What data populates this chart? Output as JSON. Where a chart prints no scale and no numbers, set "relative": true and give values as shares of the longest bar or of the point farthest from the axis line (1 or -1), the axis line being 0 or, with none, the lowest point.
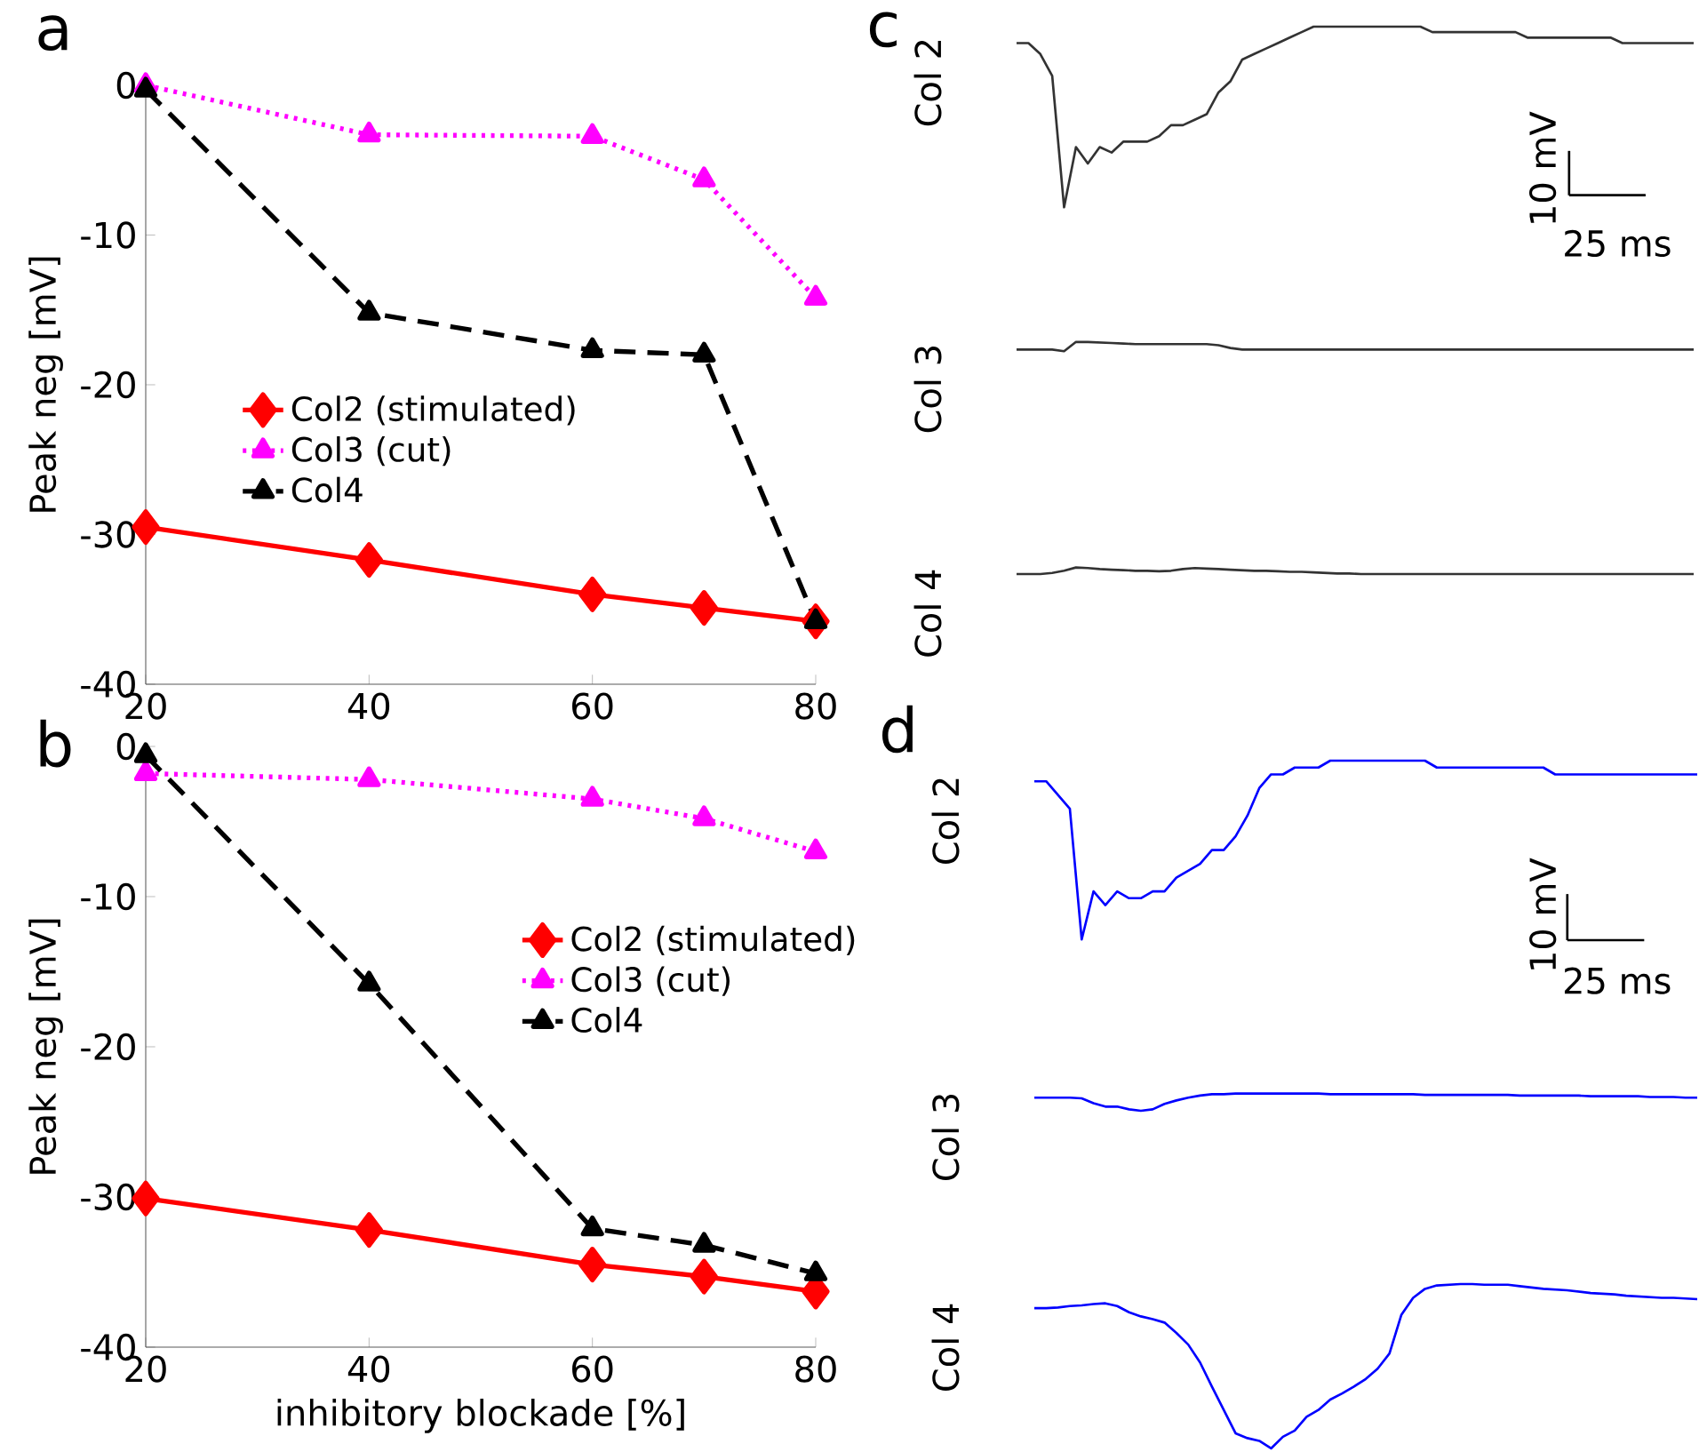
{
  "chart_data": [
    {
      "type": "line",
      "title": "a",
      "ylabel": "Peak neg [mV]",
      "x": [
        20,
        40,
        60,
        70,
        80
      ],
      "xlim": [
        20,
        80
      ],
      "ylim": [
        -40,
        0
      ],
      "xticks": [
        20,
        40,
        60,
        80
      ],
      "yticks": [
        0,
        -10,
        -20,
        -30,
        -40
      ],
      "legend": "left",
      "series": [
        {
          "name": "Col2 (stimulated)",
          "color": "#ff0000",
          "marker": "diamond",
          "line_style": "solid",
          "values": [
            -29.5,
            -31.7,
            -34.0,
            -34.9,
            -35.8
          ]
        },
        {
          "name": "Col3 (cut)",
          "color": "#ff00ff",
          "marker": "triangle",
          "line_style": "dotted",
          "values": [
            0,
            -3.3,
            -3.4,
            -6.3,
            -14.2
          ]
        },
        {
          "name": "Col4",
          "color": "#000000",
          "marker": "triangle",
          "line_style": "dashed",
          "values": [
            -0.3,
            -15.2,
            -17.7,
            -18.0,
            -35.8
          ]
        }
      ]
    },
    {
      "type": "line",
      "title": "b",
      "xlabel": "inhibitory blockade [%]",
      "ylabel": "Peak neg [mV]",
      "x": [
        20,
        40,
        60,
        70,
        80
      ],
      "xlim": [
        20,
        80
      ],
      "ylim": [
        -40,
        0
      ],
      "xticks": [
        20,
        40,
        60,
        80
      ],
      "yticks": [
        0,
        -10,
        -20,
        -30,
        -40
      ],
      "legend": "right",
      "series": [
        {
          "name": "Col2 (stimulated)",
          "color": "#ff0000",
          "marker": "diamond",
          "line_style": "solid",
          "values": [
            -30.1,
            -32.2,
            -34.5,
            -35.3,
            -36.3
          ]
        },
        {
          "name": "Col3 (cut)",
          "color": "#ff00ff",
          "marker": "triangle",
          "line_style": "dotted",
          "values": [
            -1.8,
            -2.2,
            -3.5,
            -4.8,
            -7.0
          ]
        },
        {
          "name": "Col4",
          "color": "#000000",
          "marker": "triangle",
          "line_style": "dashed",
          "values": [
            -0.6,
            -15.8,
            -32.1,
            -33.2,
            -35.1
          ]
        }
      ]
    },
    {
      "type": "line",
      "title": "c",
      "relative": true,
      "annotations": [
        "10 mV",
        "25 ms"
      ],
      "categories": [
        null,
        null,
        null,
        null,
        null,
        null,
        null,
        null,
        null,
        null,
        null,
        null,
        null,
        null,
        null,
        null,
        null,
        null,
        null,
        null,
        null,
        null,
        null,
        null,
        null,
        null,
        null,
        null,
        null,
        null,
        null,
        null,
        null,
        null,
        null,
        null,
        null,
        null,
        null,
        null,
        null,
        null,
        null,
        null,
        null,
        null,
        null,
        null,
        null,
        null,
        null,
        null,
        null,
        null,
        null,
        null,
        null,
        null
      ],
      "series": [
        {
          "name": "Col 2",
          "color": "#333333",
          "values": [
            0.97,
            0.97,
            0.95,
            0.91,
            0.67,
            0.78,
            0.75,
            0.78,
            0.77,
            0.79,
            0.79,
            0.79,
            0.8,
            0.82,
            0.82,
            0.83,
            0.84,
            0.88,
            0.9,
            0.94,
            0.95,
            0.96,
            0.97,
            0.98,
            0.99,
            1.0,
            1.0,
            1.0,
            1.0,
            1.0,
            1.0,
            1.0,
            1.0,
            1.0,
            1.0,
            0.99,
            0.99,
            0.99,
            0.99,
            0.99,
            0.99,
            0.99,
            0.99,
            0.98,
            0.98,
            0.98,
            0.98,
            0.98,
            0.98,
            0.98,
            0.98,
            0.97,
            0.97,
            0.97,
            0.97,
            0.97,
            0.97,
            0.97
          ]
        },
        {
          "name": "Col 3",
          "color": "#333333",
          "values": [
            0.41,
            0.41,
            0.41,
            0.41,
            0.407,
            0.424,
            0.424,
            0.423,
            0.422,
            0.421,
            0.42,
            0.42,
            0.42,
            0.42,
            0.42,
            0.42,
            0.42,
            0.418,
            0.413,
            0.41,
            0.41,
            0.41,
            0.41,
            0.41,
            0.41,
            0.41,
            0.41,
            0.41,
            0.41,
            0.41,
            0.41,
            0.41,
            0.41,
            0.41,
            0.41,
            0.41,
            0.41,
            0.41,
            0.41,
            0.41,
            0.41,
            0.41,
            0.41,
            0.41,
            0.41,
            0.41,
            0.41,
            0.41,
            0.41,
            0.41,
            0.41,
            0.41,
            0.41,
            0.41,
            0.41,
            0.41,
            0.41,
            0.41
          ]
        },
        {
          "name": "Col 4",
          "color": "#333333",
          "values": [
            0.0,
            0.0,
            0.0,
            0.002,
            0.006,
            0.012,
            0.011,
            0.009,
            0.008,
            0.007,
            0.006,
            0.006,
            0.005,
            0.006,
            0.009,
            0.011,
            0.01,
            0.009,
            0.008,
            0.007,
            0.006,
            0.006,
            0.005,
            0.004,
            0.004,
            0.003,
            0.002,
            0.001,
            0.001,
            0.0,
            0.0,
            0.0,
            0.0,
            0.0,
            0.0,
            0.0,
            0.0,
            0.0,
            0.0,
            0.0,
            0.0,
            0.0,
            0.0,
            0.0,
            0.0,
            0.0,
            0.0,
            0.0,
            0.0,
            0.0,
            0.0,
            0.0,
            0.0,
            0.0,
            0.0,
            0.0,
            0.0,
            0.0
          ]
        }
      ]
    },
    {
      "type": "line",
      "title": "d",
      "relative": true,
      "annotations": [
        "10 mV",
        "25 ms"
      ],
      "categories": [
        null,
        null,
        null,
        null,
        null,
        null,
        null,
        null,
        null,
        null,
        null,
        null,
        null,
        null,
        null,
        null,
        null,
        null,
        null,
        null,
        null,
        null,
        null,
        null,
        null,
        null,
        null,
        null,
        null,
        null,
        null,
        null,
        null,
        null,
        null,
        null,
        null,
        null,
        null,
        null,
        null,
        null,
        null,
        null,
        null,
        null,
        null,
        null,
        null,
        null,
        null,
        null,
        null,
        null,
        null,
        null,
        null
      ],
      "series": [
        {
          "name": "Col 2",
          "color": "#0000ff",
          "values": [
            0.97,
            0.97,
            0.95,
            0.93,
            0.74,
            0.81,
            0.79,
            0.81,
            0.8,
            0.8,
            0.81,
            0.81,
            0.83,
            0.84,
            0.85,
            0.87,
            0.87,
            0.89,
            0.92,
            0.96,
            0.98,
            0.98,
            0.99,
            0.99,
            0.99,
            1.0,
            1.0,
            1.0,
            1.0,
            1.0,
            1.0,
            1.0,
            1.0,
            1.0,
            0.99,
            0.99,
            0.99,
            0.99,
            0.99,
            0.99,
            0.99,
            0.99,
            0.99,
            0.99,
            0.98,
            0.98,
            0.98,
            0.98,
            0.98,
            0.98,
            0.98,
            0.98,
            0.98,
            0.98,
            0.98,
            0.98,
            0.98
          ]
        },
        {
          "name": "Col 3",
          "color": "#0000ff",
          "values": [
            0.51,
            0.51,
            0.51,
            0.51,
            0.509,
            0.502,
            0.497,
            0.497,
            0.493,
            0.491,
            0.493,
            0.501,
            0.506,
            0.51,
            0.513,
            0.515,
            0.515,
            0.516,
            0.516,
            0.516,
            0.516,
            0.516,
            0.516,
            0.516,
            0.516,
            0.515,
            0.515,
            0.515,
            0.515,
            0.515,
            0.515,
            0.515,
            0.515,
            0.514,
            0.514,
            0.514,
            0.514,
            0.514,
            0.514,
            0.514,
            0.514,
            0.513,
            0.513,
            0.513,
            0.513,
            0.513,
            0.513,
            0.512,
            0.512,
            0.512,
            0.512,
            0.512,
            0.511,
            0.511,
            0.511,
            0.51,
            0.51
          ]
        },
        {
          "name": "Col 4",
          "color": "#0000ff",
          "values": [
            0.204,
            0.204,
            0.205,
            0.207,
            0.208,
            0.21,
            0.211,
            0.207,
            0.198,
            0.192,
            0.188,
            0.183,
            0.168,
            0.151,
            0.125,
            0.09,
            0.056,
            0.022,
            0.015,
            0.011,
            0.0,
            0.017,
            0.026,
            0.046,
            0.056,
            0.071,
            0.08,
            0.09,
            0.101,
            0.116,
            0.138,
            0.194,
            0.219,
            0.232,
            0.237,
            0.238,
            0.239,
            0.239,
            0.238,
            0.238,
            0.238,
            0.236,
            0.234,
            0.232,
            0.231,
            0.23,
            0.228,
            0.226,
            0.225,
            0.224,
            0.222,
            0.221,
            0.22,
            0.219,
            0.219,
            0.218,
            0.217
          ]
        }
      ]
    }
  ]
}
